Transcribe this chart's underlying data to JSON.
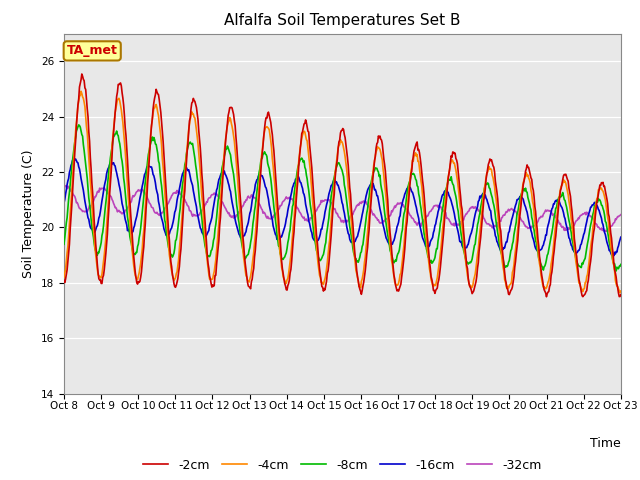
{
  "title": "Alfalfa Soil Temperatures Set B",
  "xlabel": "Time",
  "ylabel": "Soil Temperature (C)",
  "ylim": [
    14,
    27
  ],
  "xlim": [
    0,
    15
  ],
  "x_tick_labels": [
    "Oct 8",
    "Oct 9",
    "Oct 10",
    "Oct 11",
    "Oct 12",
    "Oct 13",
    "Oct 14",
    "Oct 15",
    "Oct 16",
    "Oct 17",
    "Oct 18",
    "Oct 19",
    "Oct 20",
    "Oct 21",
    "Oct 22",
    "Oct 23"
  ],
  "series": {
    "-2cm": {
      "color": "#cc0000",
      "lw": 1.2
    },
    "-4cm": {
      "color": "#ff8800",
      "lw": 1.2
    },
    "-8cm": {
      "color": "#00bb00",
      "lw": 1.2
    },
    "-16cm": {
      "color": "#0000cc",
      "lw": 1.2
    },
    "-32cm": {
      "color": "#bb44bb",
      "lw": 1.2
    }
  },
  "legend_order": [
    "-2cm",
    "-4cm",
    "-8cm",
    "-16cm",
    "-32cm"
  ],
  "annotation_label": "TA_met",
  "annotation_color_bg": "#ffff99",
  "annotation_color_border": "#aa7700",
  "annotation_color_text": "#cc0000",
  "bg_color": "#e8e8e8",
  "ytick_major": 2,
  "title_fontsize": 11,
  "axis_fontsize": 9,
  "tick_fontsize": 7.5
}
